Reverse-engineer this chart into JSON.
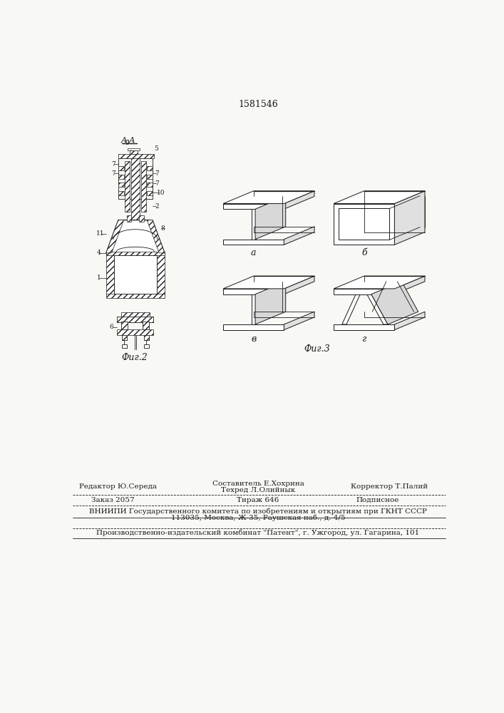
{
  "patent_number": "1581546",
  "fig2_label": "Фиг.2",
  "fig3_label": "Фиг.3",
  "section_label": "А-А",
  "beam_labels": [
    "а",
    "б",
    "в",
    "г"
  ],
  "footer": {
    "editor": "Редактор Ю.Середа",
    "composer": "Составитель Е.Хохрина",
    "techred": "Техред Л.Олийнык",
    "corrector": "Корректор Т.Палий",
    "order": "Заказ 2057",
    "tirazh": "Тираж 646",
    "podpisnoe": "Подписное",
    "vniipii": "ВНИИПИ Государственного комитета по изобретениям и открытиям при ГКНТ СССР",
    "address": "113035, Москва, Ж-35, Раушская наб., д. 4/5",
    "patent_plant": "Производственно-издательский комбинат \"Патент\", г. Ужгород, ул. Гагарина, 101"
  },
  "bg_color": "#f8f8f5",
  "line_color": "#1a1a1a"
}
